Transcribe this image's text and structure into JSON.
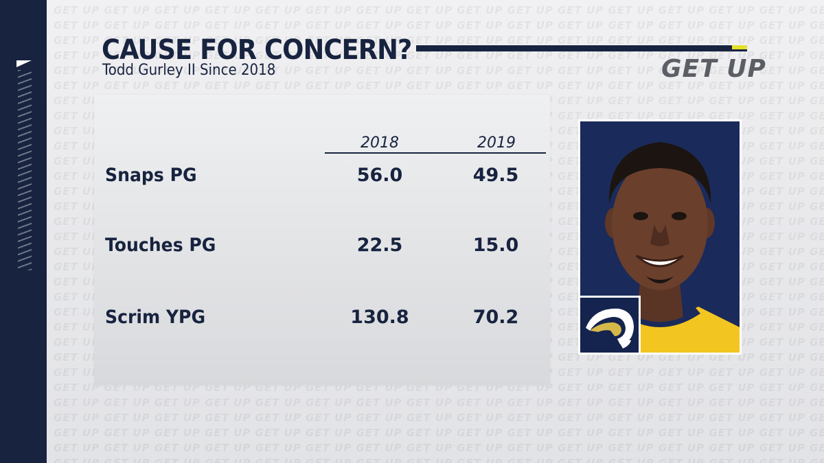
{
  "graphic": {
    "title": "CAUSE FOR CONCERN?",
    "subtitle": "Todd Gurley II Since 2018",
    "brand": "GET UP",
    "watermark_text": "GET UP"
  },
  "table": {
    "columns": [
      "2018",
      "2019"
    ],
    "rows": [
      {
        "label": "Snaps PG",
        "values": [
          "56.0",
          "49.5"
        ]
      },
      {
        "label": "Touches PG",
        "values": [
          "22.5",
          "15.0"
        ]
      },
      {
        "label": "Scrim YPG",
        "values": [
          "130.8",
          "70.2"
        ]
      }
    ]
  },
  "player_card": {
    "photo_icon": "player-headshot-icon",
    "team_logo_icon": "rams-horn-logo-icon"
  },
  "colors": {
    "navy": "#17233f",
    "accent_yellow": "#e3e02a",
    "brand_gray": "#5b5e64",
    "photo_background": "#1a2a5a",
    "jersey_yellow": "#f3c521"
  }
}
